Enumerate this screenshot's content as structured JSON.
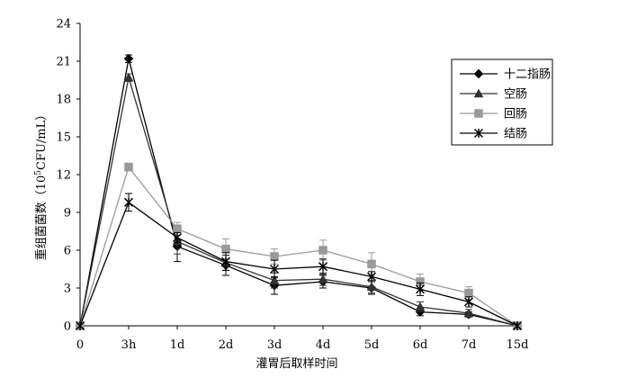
{
  "chart_data": {
    "type": "line",
    "title": "",
    "xlabel": "灌胃后取样时间",
    "ylabel_main": "重组菌菌数（10",
    "ylabel_sup": "5",
    "ylabel_tail": "CFU/mL）",
    "categories": [
      "0",
      "3h",
      "1d",
      "2d",
      "3d",
      "4d",
      "5d",
      "6d",
      "7d",
      "15d"
    ],
    "ylim": [
      0,
      24
    ],
    "yticks": [
      "0",
      "3",
      "6",
      "9",
      "12",
      "15",
      "18",
      "21",
      "24"
    ],
    "grid": false,
    "legend_position": "top-right",
    "series": [
      {
        "name": "十二指肠",
        "marker": "diamond",
        "color": "#000000",
        "values": [
          0,
          21.2,
          6.3,
          4.8,
          3.2,
          3.5,
          3.0,
          1.1,
          0.9,
          0
        ],
        "errors": [
          0,
          0.3,
          1.2,
          0.8,
          0.7,
          0.5,
          0.5,
          0.3,
          0.2,
          0
        ]
      },
      {
        "name": "空肠",
        "marker": "triangle",
        "color": "#333333",
        "values": [
          0,
          19.7,
          6.7,
          5.0,
          3.6,
          3.7,
          3.1,
          1.5,
          1.0,
          0
        ],
        "errors": [
          0,
          0.3,
          1.0,
          0.6,
          0.6,
          0.5,
          0.5,
          0.4,
          0.3,
          0
        ]
      },
      {
        "name": "回肠",
        "marker": "square",
        "color": "#999999",
        "values": [
          0,
          12.6,
          7.7,
          6.1,
          5.5,
          6.0,
          4.9,
          3.5,
          2.6,
          0
        ],
        "errors": [
          0,
          0.3,
          0.5,
          0.8,
          0.6,
          0.8,
          0.9,
          0.6,
          0.5,
          0
        ]
      },
      {
        "name": "结肠",
        "marker": "star",
        "color": "#000000",
        "values": [
          0,
          9.8,
          7.0,
          5.1,
          4.5,
          4.7,
          3.9,
          2.9,
          1.9,
          0
        ],
        "errors": [
          0,
          0.7,
          0.4,
          0.7,
          0.7,
          0.6,
          0.4,
          0.5,
          0.4,
          0
        ]
      }
    ]
  }
}
